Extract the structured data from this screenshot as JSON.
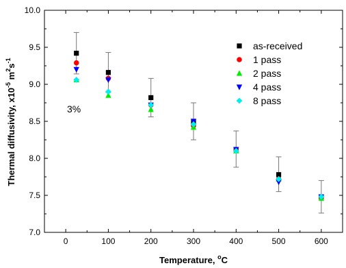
{
  "chart_data": {
    "type": "scatter",
    "x": [
      25,
      100,
      200,
      300,
      400,
      500,
      600
    ],
    "xlim": [
      -50,
      650
    ],
    "ylim": [
      7.0,
      10.0
    ],
    "xticks": [
      0,
      100,
      200,
      300,
      400,
      500,
      600
    ],
    "yticks": [
      7.0,
      7.5,
      8.0,
      8.5,
      9.0,
      9.5,
      10.0
    ],
    "xtick_labels": [
      "0",
      "100",
      "200",
      "300",
      "400",
      "500",
      "600"
    ],
    "ytick_labels": [
      "7.0",
      "7.5",
      "8.0",
      "8.5",
      "9.0",
      "9.5",
      "10.0"
    ],
    "xlabel": {
      "main": "Temperature, ",
      "sup": "o",
      "unit": "C"
    },
    "ylabel": {
      "main": "Thermal diffusivity, x10",
      "sup1": "-5",
      "mid": " m",
      "sup2": "2",
      "mid2": "s",
      "sup3": "-1"
    },
    "annotation": "3%",
    "legend_position": "top-right",
    "series": [
      {
        "name": "as-received",
        "marker": "square",
        "color": "#000000",
        "values": [
          9.42,
          9.16,
          8.82,
          8.5,
          8.12,
          7.78,
          7.48
        ],
        "err_low": [
          9.14,
          8.89,
          8.56,
          8.25,
          7.88,
          7.55,
          7.26
        ],
        "err_high": [
          9.7,
          9.43,
          9.08,
          8.75,
          8.37,
          8.02,
          7.7
        ]
      },
      {
        "name": "1 pass",
        "marker": "circle",
        "color": "#ff0000",
        "values": [
          9.29,
          9.08,
          8.72,
          8.44,
          8.12,
          7.72,
          7.47
        ]
      },
      {
        "name": "2 pass",
        "marker": "triangle-up",
        "color": "#00ee00",
        "values": [
          9.06,
          8.85,
          8.66,
          8.42,
          8.1,
          7.72,
          7.46
        ]
      },
      {
        "name": "4 pass",
        "marker": "triangle-down",
        "color": "#0000ff",
        "values": [
          9.2,
          9.06,
          8.72,
          8.5,
          8.12,
          7.68,
          7.48
        ]
      },
      {
        "name": "8 pass",
        "marker": "diamond",
        "color": "#00eeee",
        "values": [
          9.06,
          8.9,
          8.72,
          8.46,
          8.1,
          7.72,
          7.48
        ]
      }
    ]
  }
}
